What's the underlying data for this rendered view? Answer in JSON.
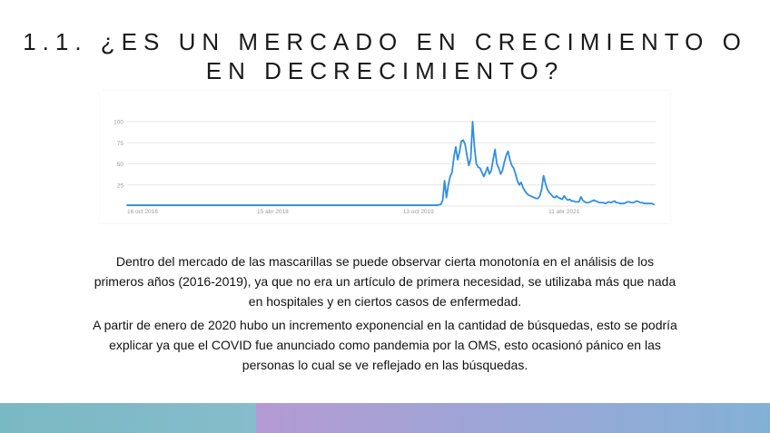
{
  "slide": {
    "title_line1": "1.1.   ¿ES UN MERCADO EN CRECIMIENTO O",
    "title_line2": "EN DECRECIMIENTO?",
    "paragraph1": "Dentro del mercado de las mascarillas se puede observar cierta monotonía en el análisis de los primeros años (2016-2019), ya que no era un artículo de primera necesidad, se utilizaba más que nada en hospitales y en ciertos casos de enfermedad.",
    "paragraph2": "A partir de enero de 2020 hubo un incremento exponencial en la cantidad de búsquedas, esto se podría explicar ya que el COVID fue anunciado como pandemia por la OMS, esto ocasionó pánico en las personas lo cual se ve reflejado en las búsquedas."
  },
  "colors": {
    "line": "#2f8ee0",
    "grid": "#e6e6e6",
    "axis_text": "#9a9a9a",
    "band_left": "#7fbac6",
    "band_right_start": "#b49ad4",
    "band_right_end": "#83b1d6"
  },
  "chart_data": {
    "type": "line",
    "title": "",
    "xlabel": "",
    "ylabel": "",
    "ylim": [
      0,
      100
    ],
    "yticks": [
      25,
      50,
      75,
      100
    ],
    "xlim": [
      "2016-10-16",
      "2022-03-20"
    ],
    "xticks": [
      {
        "date": "2016-10-16",
        "label": "16 oct 2016"
      },
      {
        "date": "2018-04-15",
        "label": "15 abr 2018"
      },
      {
        "date": "2019-10-13",
        "label": "13 oct 2019"
      },
      {
        "date": "2021-04-11",
        "label": "11 abr 2021"
      }
    ],
    "grid": true,
    "legend": "none",
    "series": [
      {
        "points": [
          [
            "2016-10-16",
            1
          ],
          [
            "2017-01-15",
            1
          ],
          [
            "2017-04-15",
            1
          ],
          [
            "2017-07-15",
            1
          ],
          [
            "2017-10-15",
            1
          ],
          [
            "2018-01-15",
            1
          ],
          [
            "2018-04-15",
            1
          ],
          [
            "2018-07-15",
            1
          ],
          [
            "2018-10-15",
            1
          ],
          [
            "2019-01-15",
            1
          ],
          [
            "2019-04-15",
            1
          ],
          [
            "2019-07-15",
            1
          ],
          [
            "2019-10-15",
            1
          ],
          [
            "2019-12-20",
            1
          ],
          [
            "2020-01-05",
            2
          ],
          [
            "2020-01-12",
            7
          ],
          [
            "2020-01-19",
            30
          ],
          [
            "2020-01-26",
            10
          ],
          [
            "2020-02-02",
            25
          ],
          [
            "2020-02-09",
            35
          ],
          [
            "2020-02-16",
            40
          ],
          [
            "2020-02-23",
            58
          ],
          [
            "2020-03-01",
            70
          ],
          [
            "2020-03-08",
            55
          ],
          [
            "2020-03-15",
            64
          ],
          [
            "2020-03-22",
            77
          ],
          [
            "2020-03-29",
            78
          ],
          [
            "2020-04-05",
            73
          ],
          [
            "2020-04-12",
            60
          ],
          [
            "2020-04-19",
            48
          ],
          [
            "2020-04-26",
            56
          ],
          [
            "2020-05-03",
            100
          ],
          [
            "2020-05-10",
            70
          ],
          [
            "2020-05-17",
            50
          ],
          [
            "2020-05-24",
            46
          ],
          [
            "2020-05-31",
            45
          ],
          [
            "2020-06-07",
            40
          ],
          [
            "2020-06-14",
            35
          ],
          [
            "2020-06-21",
            40
          ],
          [
            "2020-06-28",
            46
          ],
          [
            "2020-07-05",
            38
          ],
          [
            "2020-07-12",
            42
          ],
          [
            "2020-07-19",
            55
          ],
          [
            "2020-07-26",
            67
          ],
          [
            "2020-08-02",
            50
          ],
          [
            "2020-08-09",
            45
          ],
          [
            "2020-08-16",
            38
          ],
          [
            "2020-08-23",
            42
          ],
          [
            "2020-08-30",
            52
          ],
          [
            "2020-09-06",
            60
          ],
          [
            "2020-09-13",
            65
          ],
          [
            "2020-09-20",
            55
          ],
          [
            "2020-09-27",
            48
          ],
          [
            "2020-10-04",
            45
          ],
          [
            "2020-10-11",
            38
          ],
          [
            "2020-10-18",
            30
          ],
          [
            "2020-10-25",
            25
          ],
          [
            "2020-11-01",
            28
          ],
          [
            "2020-11-08",
            22
          ],
          [
            "2020-11-15",
            18
          ],
          [
            "2020-11-22",
            15
          ],
          [
            "2020-11-29",
            13
          ],
          [
            "2020-12-06",
            12
          ],
          [
            "2020-12-13",
            11
          ],
          [
            "2020-12-20",
            10
          ],
          [
            "2020-12-27",
            9
          ],
          [
            "2021-01-03",
            9
          ],
          [
            "2021-01-10",
            12
          ],
          [
            "2021-01-17",
            20
          ],
          [
            "2021-01-24",
            36
          ],
          [
            "2021-01-31",
            27
          ],
          [
            "2021-02-07",
            20
          ],
          [
            "2021-02-14",
            16
          ],
          [
            "2021-02-21",
            14
          ],
          [
            "2021-02-28",
            11
          ],
          [
            "2021-03-07",
            10
          ],
          [
            "2021-03-14",
            12
          ],
          [
            "2021-03-21",
            10
          ],
          [
            "2021-03-28",
            9
          ],
          [
            "2021-04-04",
            8
          ],
          [
            "2021-04-11",
            12
          ],
          [
            "2021-04-18",
            9
          ],
          [
            "2021-04-25",
            7
          ],
          [
            "2021-05-02",
            8
          ],
          [
            "2021-05-09",
            6
          ],
          [
            "2021-05-16",
            6
          ],
          [
            "2021-05-23",
            5
          ],
          [
            "2021-05-30",
            5
          ],
          [
            "2021-06-06",
            5
          ],
          [
            "2021-06-13",
            11
          ],
          [
            "2021-06-20",
            7
          ],
          [
            "2021-06-27",
            5
          ],
          [
            "2021-07-04",
            4
          ],
          [
            "2021-07-11",
            4
          ],
          [
            "2021-07-18",
            5
          ],
          [
            "2021-07-25",
            6
          ],
          [
            "2021-08-01",
            7
          ],
          [
            "2021-08-08",
            6
          ],
          [
            "2021-08-15",
            5
          ],
          [
            "2021-08-22",
            4
          ],
          [
            "2021-08-29",
            4
          ],
          [
            "2021-09-05",
            4
          ],
          [
            "2021-09-12",
            3
          ],
          [
            "2021-09-19",
            4
          ],
          [
            "2021-09-26",
            5
          ],
          [
            "2021-10-03",
            4
          ],
          [
            "2021-10-10",
            5
          ],
          [
            "2021-10-17",
            6
          ],
          [
            "2021-10-24",
            4
          ],
          [
            "2021-10-31",
            4
          ],
          [
            "2021-11-07",
            3
          ],
          [
            "2021-11-14",
            3
          ],
          [
            "2021-11-21",
            3
          ],
          [
            "2021-11-28",
            4
          ],
          [
            "2021-12-05",
            5
          ],
          [
            "2021-12-12",
            5
          ],
          [
            "2021-12-19",
            4
          ],
          [
            "2021-12-26",
            4
          ],
          [
            "2022-01-02",
            5
          ],
          [
            "2022-01-09",
            6
          ],
          [
            "2022-01-16",
            5
          ],
          [
            "2022-01-23",
            4
          ],
          [
            "2022-01-30",
            4
          ],
          [
            "2022-02-06",
            3
          ],
          [
            "2022-02-13",
            3
          ],
          [
            "2022-02-20",
            3
          ],
          [
            "2022-02-27",
            3
          ],
          [
            "2022-03-06",
            3
          ],
          [
            "2022-03-13",
            2
          ]
        ]
      }
    ]
  }
}
